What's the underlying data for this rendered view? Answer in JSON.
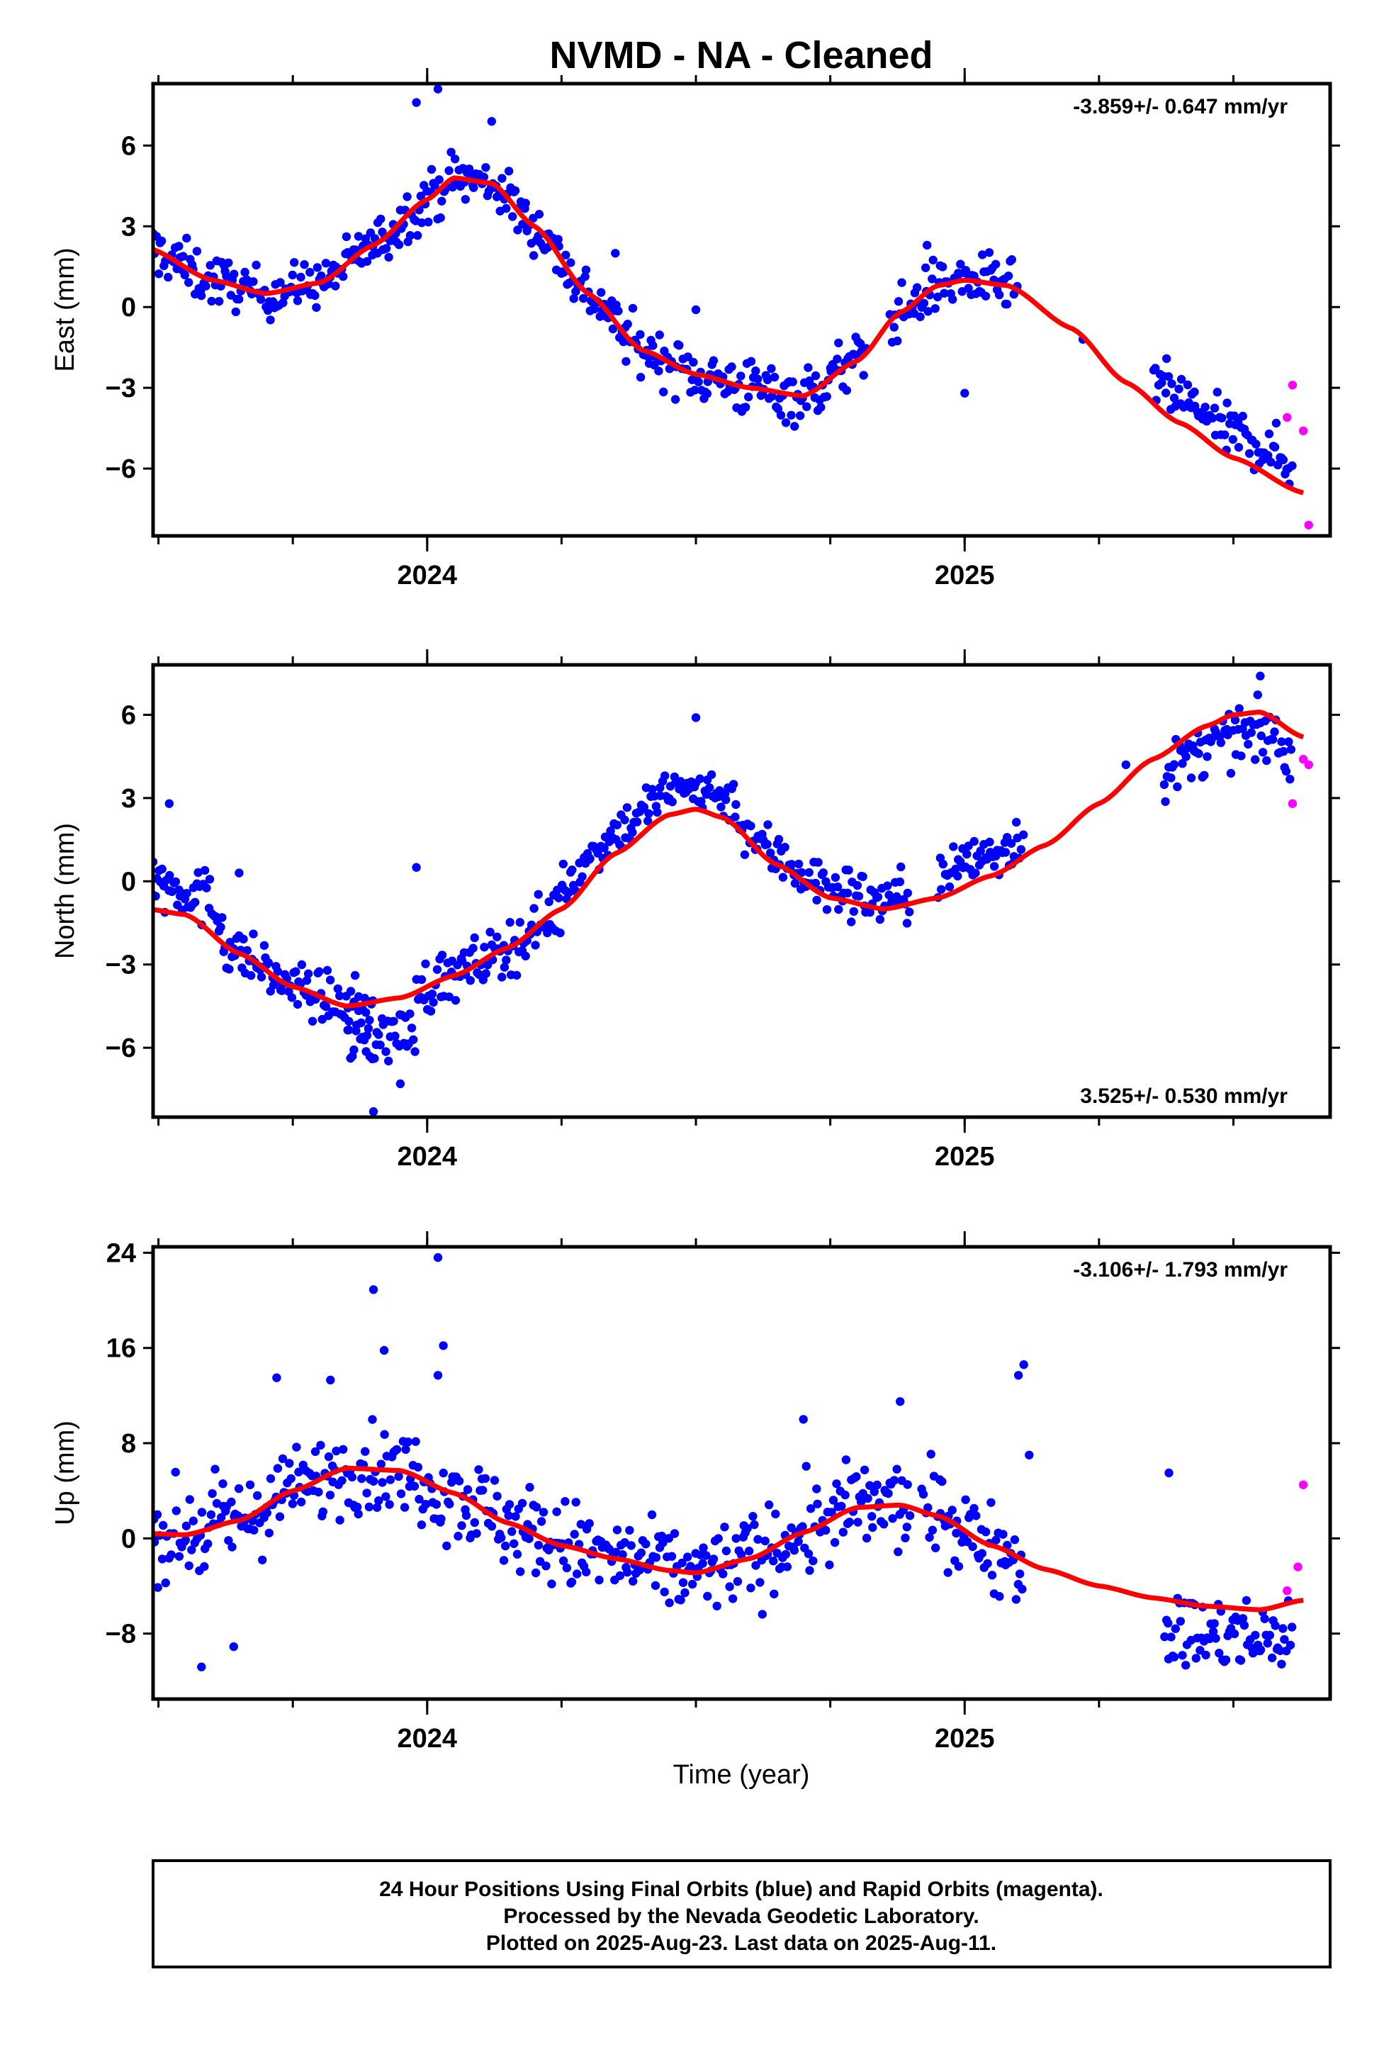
{
  "title": "NVMD  - NA - Cleaned",
  "colors": {
    "final": "#0000ff",
    "rapid": "#ff00ff",
    "model": "#ff0000",
    "frame": "#000000"
  },
  "xlabel": "Time (year)",
  "footer": {
    "lines": [
      "24 Hour Positions Using Final Orbits (blue) and Rapid Orbits (magenta).",
      "Processed by the Nevada Geodetic Laboratory.",
      "Plotted on 2025-Aug-23. Last data on 2025-Aug-11."
    ]
  },
  "chart_data": [
    {
      "type": "scatter",
      "name": "east",
      "ylabel": "East (mm)",
      "rate_label": "-3.859+/- 0.647 mm/yr",
      "rate_position": "top-right",
      "xlim": [
        2023.49,
        2025.68
      ],
      "ylim": [
        -8.5,
        8.3
      ],
      "yticks": [
        -6,
        -3,
        0,
        3,
        6
      ],
      "xticks": [
        2024,
        2025
      ],
      "model": {
        "x": [
          2023.48,
          2023.6,
          2023.7,
          2023.8,
          2023.9,
          2024.0,
          2024.05,
          2024.12,
          2024.2,
          2024.3,
          2024.4,
          2024.5,
          2024.6,
          2024.7,
          2024.8,
          2024.88,
          2024.95,
          2025.0,
          2025.08,
          2025.2,
          2025.3,
          2025.4,
          2025.5,
          2025.63
        ],
        "y": [
          2.2,
          1.0,
          0.5,
          0.9,
          2.3,
          4.0,
          4.8,
          4.6,
          3.0,
          0.5,
          -1.6,
          -2.5,
          -3.0,
          -3.3,
          -2.0,
          -0.2,
          0.8,
          1.0,
          0.8,
          -0.8,
          -2.8,
          -4.3,
          -5.6,
          -6.9
        ]
      },
      "segments": [
        {
          "x0": 2023.48,
          "x1": 2023.62,
          "model": "follow",
          "spread": 0.9
        },
        {
          "x0": 2023.62,
          "x1": 2023.88,
          "model": "follow",
          "spread": 0.8
        },
        {
          "x0": 2023.88,
          "x1": 2024.17,
          "model": "follow",
          "spread": 0.9
        },
        {
          "x0": 2024.17,
          "x1": 2024.5,
          "model": "follow",
          "spread": 0.9
        },
        {
          "x0": 2024.5,
          "x1": 2024.82,
          "model": "follow",
          "spread": 1.0
        },
        {
          "x0": 2024.86,
          "x1": 2025.1,
          "model": "follow",
          "spread": 0.9
        },
        {
          "x0": 2025.35,
          "x1": 2025.61,
          "model": "follow",
          "offset": 0.9,
          "spread": 0.9
        }
      ],
      "extra_points": [
        [
          2023.98,
          7.6
        ],
        [
          2024.02,
          8.1
        ],
        [
          2024.12,
          6.9
        ],
        [
          2024.35,
          2.0
        ],
        [
          2024.5,
          -0.1
        ],
        [
          2024.93,
          2.3
        ],
        [
          2025.0,
          -3.2
        ],
        [
          2025.22,
          -1.2
        ]
      ],
      "rapid_points": [
        [
          2025.61,
          -2.9
        ],
        [
          2025.63,
          -4.6
        ],
        [
          2025.64,
          -8.1
        ],
        [
          2025.6,
          -4.1
        ]
      ]
    },
    {
      "type": "scatter",
      "name": "north",
      "ylabel": "North (mm)",
      "rate_label": "3.525+/- 0.530 mm/yr",
      "rate_position": "bottom-right",
      "xlim": [
        2023.49,
        2025.68
      ],
      "ylim": [
        -8.5,
        7.8
      ],
      "yticks": [
        -6,
        -3,
        0,
        3,
        6
      ],
      "xticks": [
        2024,
        2025
      ],
      "model": {
        "x": [
          2023.48,
          2023.55,
          2023.65,
          2023.75,
          2023.85,
          2023.95,
          2024.05,
          2024.15,
          2024.25,
          2024.35,
          2024.45,
          2024.5,
          2024.55,
          2024.65,
          2024.75,
          2024.85,
          2024.95,
          2025.05,
          2025.15,
          2025.25,
          2025.35,
          2025.45,
          2025.5,
          2025.55,
          2025.63
        ],
        "y": [
          -1.0,
          -1.2,
          -2.6,
          -3.8,
          -4.5,
          -4.2,
          -3.4,
          -2.4,
          -1.0,
          1.0,
          2.4,
          2.6,
          2.3,
          0.6,
          -0.6,
          -1.0,
          -0.6,
          0.2,
          1.3,
          2.8,
          4.4,
          5.6,
          6.0,
          6.1,
          5.2
        ]
      },
      "segments": [
        {
          "x0": 2023.48,
          "x1": 2023.62,
          "model": "follow",
          "offset": 1.0,
          "spread": 1.0
        },
        {
          "x0": 2023.62,
          "x1": 2023.9,
          "model": "follow",
          "spread": 0.8
        },
        {
          "x0": 2023.85,
          "x1": 2023.98,
          "model": "follow",
          "offset": -1.3,
          "spread": 0.9
        },
        {
          "x0": 2023.98,
          "x1": 2024.25,
          "model": "follow",
          "spread": 0.9
        },
        {
          "x0": 2024.25,
          "x1": 2024.58,
          "model": "follow",
          "offset": 0.8,
          "spread": 0.8
        },
        {
          "x0": 2024.58,
          "x1": 2024.9,
          "model": "follow",
          "offset": 0.3,
          "spread": 0.9
        },
        {
          "x0": 2024.95,
          "x1": 2025.11,
          "model": "follow",
          "offset": 0.8,
          "spread": 0.9
        },
        {
          "x0": 2025.37,
          "x1": 2025.61,
          "model": "follow",
          "offset": -0.8,
          "spread": 0.9
        }
      ],
      "extra_points": [
        [
          2023.52,
          2.8
        ],
        [
          2023.65,
          0.3
        ],
        [
          2023.98,
          0.5
        ],
        [
          2023.95,
          -7.3
        ],
        [
          2023.9,
          -8.3
        ],
        [
          2024.5,
          5.9
        ],
        [
          2025.3,
          4.2
        ],
        [
          2025.55,
          7.4
        ]
      ],
      "rapid_points": [
        [
          2025.61,
          2.8
        ],
        [
          2025.63,
          4.4
        ],
        [
          2025.64,
          4.2
        ]
      ]
    },
    {
      "type": "scatter",
      "name": "up",
      "ylabel": "Up (mm)",
      "rate_label": "-3.106+/- 1.793 mm/yr",
      "rate_position": "top-right",
      "xlim": [
        2023.49,
        2025.68
      ],
      "ylim": [
        -13.5,
        24.5
      ],
      "yticks": [
        -8,
        0,
        8,
        16,
        24
      ],
      "xticks": [
        2024,
        2025
      ],
      "model": {
        "x": [
          2023.48,
          2023.55,
          2023.65,
          2023.75,
          2023.85,
          2023.95,
          2024.05,
          2024.15,
          2024.25,
          2024.35,
          2024.45,
          2024.5,
          2024.6,
          2024.7,
          2024.8,
          2024.88,
          2024.95,
          2025.05,
          2025.15,
          2025.25,
          2025.35,
          2025.45,
          2025.55,
          2025.63
        ],
        "y": [
          0.4,
          0.3,
          1.5,
          4.0,
          5.9,
          5.7,
          3.8,
          1.3,
          -0.6,
          -1.7,
          -2.7,
          -2.9,
          -1.7,
          0.5,
          2.6,
          2.8,
          1.9,
          -0.6,
          -2.6,
          -4.0,
          -5.0,
          -5.7,
          -6.0,
          -5.2
        ]
      },
      "segments": [
        {
          "x0": 2023.48,
          "x1": 2023.68,
          "model": "follow",
          "spread": 3.5
        },
        {
          "x0": 2023.68,
          "x1": 2024.0,
          "model": "follow",
          "spread": 3.2
        },
        {
          "x0": 2024.0,
          "x1": 2024.3,
          "model": "follow",
          "spread": 3.6
        },
        {
          "x0": 2024.3,
          "x1": 2024.62,
          "model": "follow",
          "spread": 3.3
        },
        {
          "x0": 2024.62,
          "x1": 2024.9,
          "model": "follow",
          "spread": 3.6
        },
        {
          "x0": 2024.92,
          "x1": 2025.11,
          "model": "follow",
          "spread": 3.3
        },
        {
          "x0": 2025.37,
          "x1": 2025.61,
          "model": "follow",
          "offset": -2.5,
          "spread": 3.0
        }
      ],
      "extra_points": [
        [
          2023.9,
          20.9
        ],
        [
          2023.92,
          15.8
        ],
        [
          2024.02,
          23.6
        ],
        [
          2024.03,
          16.2
        ],
        [
          2024.02,
          13.7
        ],
        [
          2023.72,
          13.5
        ],
        [
          2023.82,
          13.3
        ],
        [
          2023.58,
          -10.8
        ],
        [
          2025.11,
          14.6
        ],
        [
          2025.1,
          13.7
        ],
        [
          2024.88,
          11.5
        ],
        [
          2024.7,
          10.0
        ],
        [
          2025.38,
          5.5
        ],
        [
          2025.12,
          7.0
        ],
        [
          2023.64,
          -9.1
        ]
      ],
      "rapid_points": [
        [
          2025.6,
          -4.4
        ],
        [
          2025.62,
          -2.4
        ],
        [
          2025.63,
          4.5
        ]
      ]
    }
  ]
}
